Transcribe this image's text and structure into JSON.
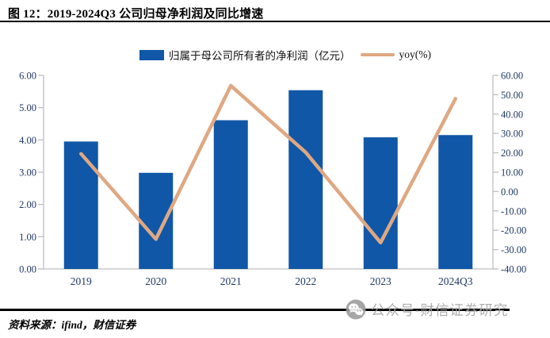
{
  "title": "图 12：2019-2024Q3 公司归母净利润及同比增速",
  "legend": {
    "bar_label": "归属于母公司所有者的净利润（亿元）",
    "line_label": "yoy(%)"
  },
  "footer": {
    "source": "资料来源：ifind，财信证券"
  },
  "watermark": {
    "icon": "wechat-icon",
    "text": "公众号·财信证券研究"
  },
  "colors": {
    "bar": "#1057A7",
    "line": "#DFA882",
    "axis": "#BFBFBF",
    "axis_label": "#1F3864",
    "title_text": "#000000",
    "watermark_gray": "#a6a6a6"
  },
  "chart_data": {
    "type": "bar",
    "subtype": "bar+line dual-axis",
    "categories": [
      "2019",
      "2020",
      "2021",
      "2022",
      "2023",
      "2024Q3"
    ],
    "series": [
      {
        "name": "归属于母公司所有者的净利润（亿元）",
        "type": "bar",
        "axis": "left",
        "values": [
          3.95,
          2.98,
          4.61,
          5.54,
          4.08,
          4.15
        ]
      },
      {
        "name": "yoy(%)",
        "type": "line",
        "axis": "right",
        "values": [
          19.5,
          -24.6,
          54.7,
          20.2,
          -26.4,
          48.0
        ]
      }
    ],
    "title": "2019-2024Q3 公司归母净利润及同比增速",
    "xlabel": "",
    "ylabel_left": "亿元",
    "ylabel_right": "%",
    "left_axis": {
      "min": 0,
      "max": 6,
      "step": 1,
      "tick_format": "0.00"
    },
    "right_axis": {
      "min": -40,
      "max": 60,
      "step": 10,
      "tick_format": "0.00"
    },
    "grid": false,
    "legend_position": "top"
  }
}
